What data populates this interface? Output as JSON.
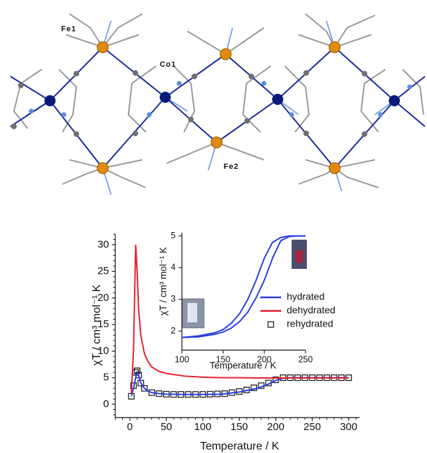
{
  "structure": {
    "labels": [
      "Fe1",
      "Co1",
      "Fe2"
    ]
  },
  "chart_data": [
    {
      "type": "line",
      "xlabel": "Temperature / K",
      "ylabel": "χT / cm³ mol⁻¹ K",
      "xlim": [
        -20,
        315
      ],
      "ylim": [
        -2.5,
        32
      ],
      "xticks": [
        0,
        50,
        100,
        150,
        200,
        250,
        300
      ],
      "yticks": [
        0,
        5,
        10,
        15,
        20,
        25,
        30
      ],
      "legend": "right",
      "series": [
        {
          "name": "hydrated",
          "color": "#2a3fe0",
          "style": "line",
          "x": [
            2,
            5,
            8,
            10,
            12,
            15,
            20,
            25,
            30,
            40,
            50,
            75,
            100,
            125,
            150,
            175,
            190,
            200,
            210,
            220,
            250,
            300
          ],
          "values": [
            1.5,
            3,
            5,
            6,
            5.5,
            4,
            3,
            2.5,
            2.2,
            2,
            1.9,
            1.85,
            1.85,
            1.9,
            2.3,
            3,
            3.8,
            4.5,
            4.9,
            5,
            5,
            5
          ]
        },
        {
          "name": "dehydrated",
          "color": "#e8202a",
          "style": "line",
          "x": [
            2,
            5,
            8,
            10,
            12,
            15,
            20,
            25,
            30,
            40,
            50,
            75,
            100,
            125,
            150,
            175,
            190,
            200,
            210,
            220,
            250,
            300
          ],
          "values": [
            2,
            10,
            30,
            25,
            18,
            13,
            9.5,
            8,
            7,
            6.2,
            5.8,
            5.3,
            5.1,
            5,
            5,
            4.95,
            4.95,
            4.95,
            4.95,
            4.95,
            4.95,
            4.95
          ]
        },
        {
          "name": "rehydrated",
          "color": "#111111",
          "style": "square-open",
          "x": [
            2,
            5,
            8,
            10,
            12,
            15,
            20,
            30,
            40,
            50,
            60,
            70,
            80,
            90,
            100,
            110,
            120,
            130,
            140,
            150,
            160,
            170,
            180,
            190,
            200,
            210,
            220,
            230,
            240,
            250,
            260,
            270,
            280,
            290,
            300
          ],
          "values": [
            1.5,
            3.5,
            6,
            6.3,
            5.5,
            4,
            3,
            2.2,
            2,
            1.9,
            1.85,
            1.85,
            1.85,
            1.85,
            1.85,
            1.9,
            1.95,
            2,
            2.2,
            2.4,
            2.7,
            3.1,
            3.5,
            4,
            4.6,
            5,
            5,
            5,
            5,
            5,
            5,
            5,
            5,
            5,
            5
          ]
        }
      ]
    },
    {
      "type": "line",
      "xlabel": "Temperature / K",
      "ylabel": "χT / cm³ mol⁻¹ K",
      "xlim": [
        100,
        250
      ],
      "ylim": [
        1.4,
        5.1
      ],
      "xticks": [
        100,
        150,
        200,
        250
      ],
      "yticks": [
        2,
        3,
        4,
        5
      ],
      "series": [
        {
          "color": "#2a3fe0",
          "style": "line",
          "x": [
            100,
            120,
            140,
            150,
            160,
            170,
            180,
            190,
            200,
            210,
            220,
            230,
            240,
            250
          ],
          "values": [
            1.8,
            1.85,
            1.95,
            2.05,
            2.25,
            2.55,
            3,
            3.6,
            4.3,
            4.8,
            4.95,
            5,
            5,
            5
          ]
        },
        {
          "color": "#2a3fe0",
          "style": "line",
          "x": [
            100,
            120,
            140,
            150,
            160,
            170,
            180,
            190,
            200,
            210,
            220,
            230,
            240,
            250
          ],
          "values": [
            1.8,
            1.82,
            1.9,
            1.97,
            2.1,
            2.3,
            2.6,
            3.05,
            3.6,
            4.3,
            4.85,
            4.98,
            5,
            5
          ]
        }
      ]
    }
  ]
}
